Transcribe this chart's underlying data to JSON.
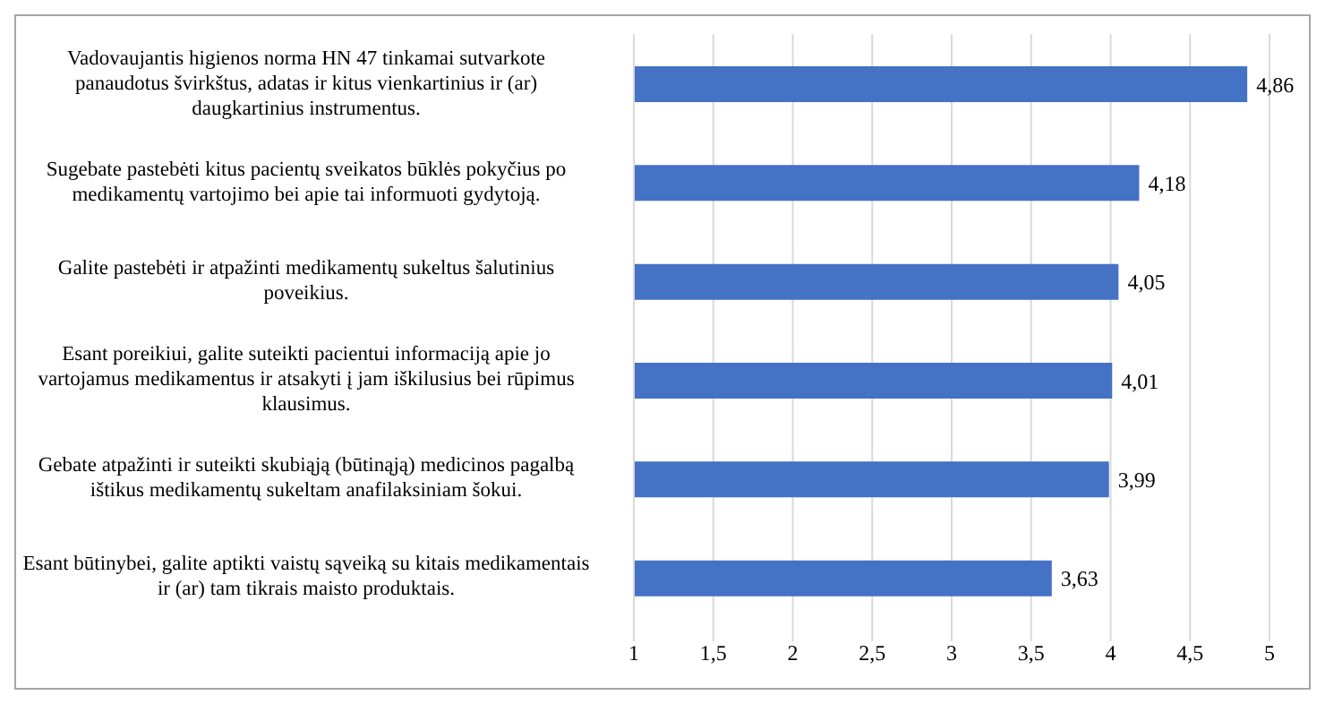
{
  "chart_data": {
    "type": "bar",
    "orientation": "horizontal",
    "categories": [
      "Vadovaujantis higienos norma HN 47 tinkamai sutvarkote panaudotus švirkštus, adatas ir kitus vienkartinius ir (ar) daugkartinius instrumentus.",
      "Sugebate pastebėti kitus pacientų sveikatos būklės pokyčius po medikamentų vartojimo bei apie tai informuoti gydytoją.",
      "Galite pastebėti ir atpažinti medikamentų sukeltus šalutinius poveikius.",
      "Esant poreikiui, galite suteikti pacientui informaciją apie jo vartojamus medikamentus ir atsakyti į jam iškilusius bei rūpimus klausimus.",
      "Gebate atpažinti ir suteikti skubiąją (būtinąją) medicinos pagalbą ištikus medikamentų sukeltam anafilaksiniam šokui.",
      "Esant būtinybei, galite aptikti vaistų sąveiką su kitais medikamentais ir (ar) tam tikrais maisto produktais."
    ],
    "values": [
      4.86,
      4.18,
      4.05,
      4.01,
      3.99,
      3.63
    ],
    "value_labels": [
      "4,86",
      "4,18",
      "4,05",
      "4,01",
      "3,99",
      "3,63"
    ],
    "color": "#4472c4",
    "xlim": [
      1,
      5
    ],
    "xticks": [
      1,
      {
        "value": 1.5,
        "label": "1,5"
      },
      2,
      {
        "value": 2.5,
        "label": "2,5"
      },
      3,
      {
        "value": 3.5,
        "label": "3,5"
      },
      4,
      {
        "value": 4.5,
        "label": "4,5"
      },
      5
    ],
    "grid": "x",
    "legend": false
  }
}
